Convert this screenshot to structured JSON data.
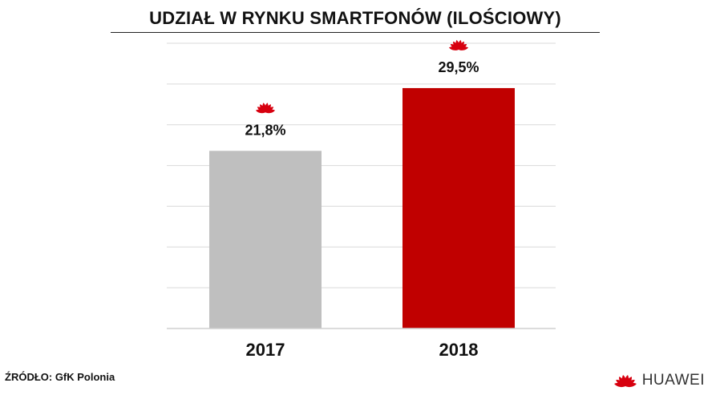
{
  "title": "UDZIAŁ W RYNKU SMARTFONÓW (ILOŚCIOWY)",
  "source": "ŹRÓDŁO: GfK Polonia",
  "brand": {
    "name": "HUAWEI",
    "logo_icon": "huawei-flower-icon",
    "logo_color": "#d7000f"
  },
  "colors": {
    "bar_2017": "#bfbfbf",
    "bar_2018": "#c00000",
    "grid": "#d9d9d9",
    "text": "#111111"
  },
  "chart_data": {
    "type": "bar",
    "title": "UDZIAŁ W RYNKU SMARTFONÓW (ILOŚCIOWY)",
    "categories": [
      "2017",
      "2018"
    ],
    "values": [
      21.8,
      29.5
    ],
    "data_labels": [
      "21,8%",
      "29,5%"
    ],
    "xlabel": "",
    "ylabel": "",
    "ylim": [
      0,
      35
    ],
    "grid": true,
    "legend": "none"
  }
}
